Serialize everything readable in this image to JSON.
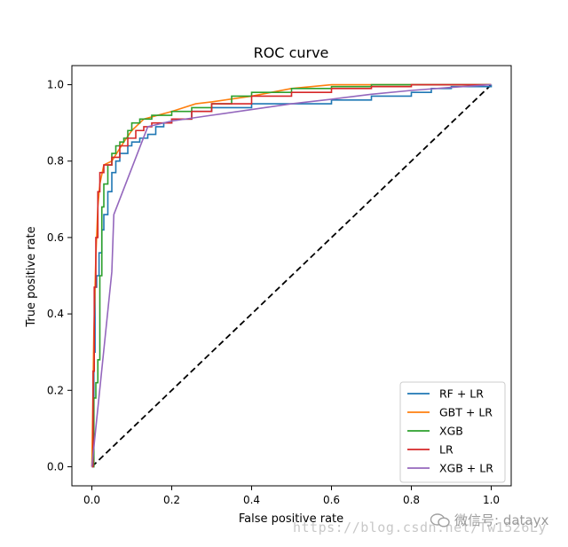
{
  "chart_data": {
    "type": "line",
    "title": "ROC curve",
    "xlabel": "False positive rate",
    "ylabel": "True positive rate",
    "xlim": [
      -0.05,
      1.05
    ],
    "ylim": [
      -0.05,
      1.05
    ],
    "xticks": [
      "0.0",
      "0.2",
      "0.4",
      "0.6",
      "0.8",
      "1.0"
    ],
    "yticks": [
      "0.0",
      "0.2",
      "0.4",
      "0.6",
      "0.8",
      "1.0"
    ],
    "legend_position": "lower-right",
    "diagonal": {
      "x": [
        0,
        1
      ],
      "y": [
        0,
        1
      ],
      "color": "#000000",
      "style": "dashed"
    },
    "series": [
      {
        "name": "RF + LR",
        "color": "#1f77b4",
        "step": true,
        "x": [
          0,
          0.005,
          0.008,
          0.012,
          0.018,
          0.025,
          0.03,
          0.04,
          0.05,
          0.06,
          0.07,
          0.09,
          0.1,
          0.12,
          0.14,
          0.16,
          0.18,
          0.2,
          0.25,
          0.3,
          0.4,
          0.5,
          0.6,
          0.7,
          0.8,
          0.85,
          0.9,
          1.0
        ],
        "y": [
          0,
          0.3,
          0.47,
          0.5,
          0.56,
          0.62,
          0.66,
          0.72,
          0.77,
          0.8,
          0.82,
          0.84,
          0.85,
          0.86,
          0.87,
          0.89,
          0.9,
          0.91,
          0.93,
          0.94,
          0.95,
          0.95,
          0.96,
          0.97,
          0.98,
          0.99,
          0.995,
          1.0
        ]
      },
      {
        "name": "GBT + LR",
        "color": "#ff7f0e",
        "step": false,
        "x": [
          0,
          0.005,
          0.01,
          0.015,
          0.02,
          0.03,
          0.05,
          0.08,
          0.1,
          0.13,
          0.2,
          0.26,
          0.3,
          0.4,
          0.5,
          0.6,
          0.7,
          0.8,
          1.0
        ],
        "y": [
          0,
          0.35,
          0.55,
          0.68,
          0.74,
          0.79,
          0.8,
          0.85,
          0.88,
          0.91,
          0.93,
          0.95,
          0.955,
          0.97,
          0.99,
          1.0,
          1.0,
          1.0,
          1.0
        ]
      },
      {
        "name": "XGB",
        "color": "#2ca02c",
        "step": true,
        "x": [
          0,
          0.005,
          0.01,
          0.015,
          0.02,
          0.025,
          0.03,
          0.04,
          0.05,
          0.06,
          0.07,
          0.08,
          0.09,
          0.1,
          0.12,
          0.15,
          0.2,
          0.25,
          0.3,
          0.35,
          0.4,
          0.5,
          0.6,
          0.7,
          0.75,
          1.0
        ],
        "y": [
          0,
          0.18,
          0.22,
          0.28,
          0.5,
          0.68,
          0.74,
          0.79,
          0.82,
          0.84,
          0.85,
          0.86,
          0.88,
          0.9,
          0.91,
          0.92,
          0.93,
          0.94,
          0.95,
          0.97,
          0.98,
          0.99,
          0.995,
          1.0,
          1.0,
          1.0
        ]
      },
      {
        "name": "LR",
        "color": "#d62728",
        "step": true,
        "x": [
          0,
          0.003,
          0.006,
          0.01,
          0.015,
          0.02,
          0.03,
          0.05,
          0.07,
          0.09,
          0.11,
          0.13,
          0.15,
          0.2,
          0.25,
          0.3,
          0.4,
          0.5,
          0.6,
          0.7,
          0.8,
          1.0
        ],
        "y": [
          0,
          0.25,
          0.47,
          0.6,
          0.72,
          0.77,
          0.79,
          0.81,
          0.84,
          0.86,
          0.88,
          0.89,
          0.9,
          0.91,
          0.93,
          0.95,
          0.97,
          0.98,
          0.99,
          0.995,
          1.0,
          1.0
        ]
      },
      {
        "name": "XGB + LR",
        "color": "#9467bd",
        "step": false,
        "x": [
          0,
          0.05,
          0.055,
          0.14,
          0.2,
          0.3,
          0.4,
          0.5,
          0.6,
          0.7,
          0.8,
          0.9,
          1.0
        ],
        "y": [
          0,
          0.51,
          0.66,
          0.89,
          0.905,
          0.92,
          0.935,
          0.95,
          0.962,
          0.975,
          0.985,
          0.993,
          1.0
        ]
      }
    ]
  },
  "watermark": {
    "url": "https://blog.csdn.net/Tw1526Ly",
    "brand": "微信号: datayx"
  }
}
